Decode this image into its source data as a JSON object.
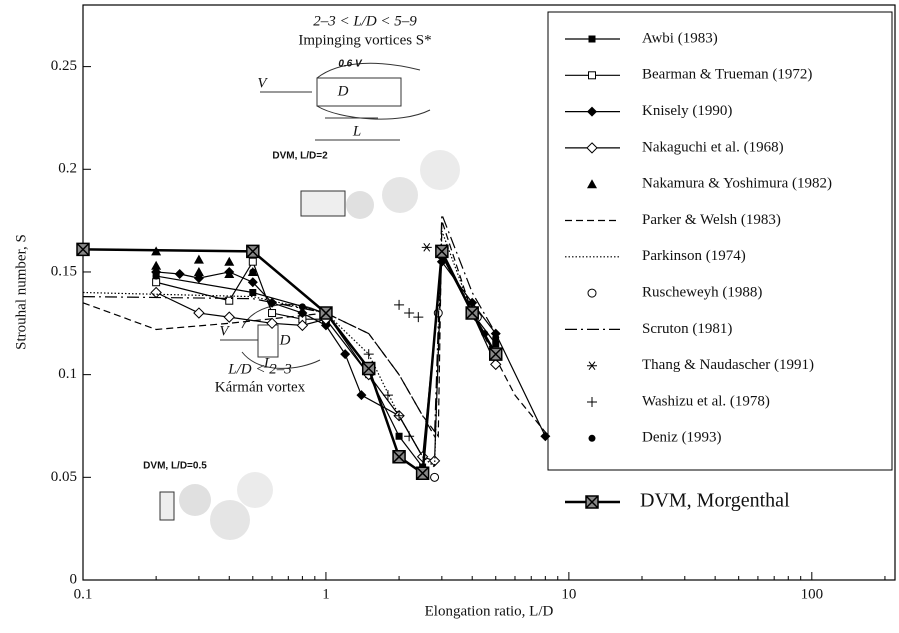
{
  "chart_data": {
    "type": "scatter",
    "xlabel": "Elongation ratio, L/D",
    "ylabel": "Strouhal number, S",
    "xlim": [
      0.1,
      220
    ],
    "xticks": [
      0.1,
      1,
      10,
      100
    ],
    "xscale": "log",
    "ylim": [
      0,
      0.28
    ],
    "yticks": [
      0,
      0.05,
      0.1,
      0.15,
      0.2,
      0.25
    ],
    "annotations": [
      "2–3 < L/D < 5–9",
      "Impinging vortices S*",
      "DVM, L/D=2",
      "L/D < 2–3",
      "Kármán vortex",
      "DVM, L/D=0.5",
      "V",
      "0.6 V",
      "D",
      "L",
      "V",
      "D",
      "L"
    ],
    "series": [
      {
        "name": "Awbi (1983)",
        "color": "#000",
        "marker": "square",
        "line": "solid",
        "x": [
          0.2,
          0.5,
          1,
          1.5,
          2,
          2.5,
          3,
          4,
          5
        ],
        "values": [
          0.148,
          0.14,
          0.13,
          0.1,
          0.07,
          0.055,
          0.158,
          0.13,
          0.115
        ]
      },
      {
        "name": "Bearman & Trueman (1972)",
        "color": "#000",
        "marker": "open-square",
        "line": "solid",
        "x": [
          0.2,
          0.4,
          0.5,
          0.6,
          0.8,
          1
        ],
        "values": [
          0.145,
          0.136,
          0.155,
          0.13,
          0.127,
          0.127
        ]
      },
      {
        "name": "Knisely (1990)",
        "color": "#000",
        "marker": "diamond",
        "line": "solid",
        "x": [
          0.2,
          0.25,
          0.3,
          0.4,
          0.5,
          0.6,
          0.8,
          1,
          1.2,
          1.4,
          2,
          2.5,
          3,
          4,
          5,
          8
        ],
        "values": [
          0.15,
          0.149,
          0.147,
          0.15,
          0.145,
          0.135,
          0.13,
          0.124,
          0.11,
          0.09,
          0.08,
          0.06,
          0.155,
          0.135,
          0.12,
          0.07
        ]
      },
      {
        "name": "Nakaguchi et al. (1968)",
        "color": "#000",
        "marker": "open-diamond",
        "line": "solid",
        "x": [
          0.2,
          0.3,
          0.4,
          0.6,
          0.8,
          1,
          1.5,
          2,
          2.5,
          2.8,
          3,
          4,
          5
        ],
        "values": [
          0.14,
          0.13,
          0.128,
          0.125,
          0.124,
          0.127,
          0.1,
          0.08,
          0.06,
          0.058,
          0.16,
          0.13,
          0.105
        ]
      },
      {
        "name": "Nakamura & Yoshimura (1982)",
        "color": "#000",
        "marker": "triangle",
        "line": "none",
        "x": [
          0.2,
          0.3,
          0.4,
          0.5,
          0.2,
          0.3,
          0.4
        ],
        "values": [
          0.16,
          0.156,
          0.155,
          0.15,
          0.153,
          0.15,
          0.149
        ]
      },
      {
        "name": "Parker & Welsh (1983)",
        "color": "#000",
        "marker": "none",
        "line": "dashed",
        "x": [
          0.1,
          0.2,
          0.4,
          1,
          1.5,
          2,
          2.5,
          2.9,
          3,
          4,
          6,
          8
        ],
        "values": [
          0.135,
          0.122,
          0.125,
          0.13,
          0.12,
          0.1,
          0.08,
          0.07,
          0.175,
          0.13,
          0.09,
          0.072
        ]
      },
      {
        "name": "Parkinson (1974)",
        "color": "#000",
        "marker": "none",
        "line": "dotted",
        "x": [
          0.1,
          0.5,
          1,
          1.5,
          2,
          2.5,
          2.8,
          3,
          4,
          5
        ],
        "values": [
          0.14,
          0.138,
          0.13,
          0.11,
          0.08,
          0.06,
          0.055,
          0.17,
          0.13,
          0.11
        ]
      },
      {
        "name": "Ruscheweyh (1988)",
        "color": "#000",
        "marker": "circle",
        "line": "none",
        "x": [
          2.8,
          2.9,
          4.2
        ],
        "values": [
          0.05,
          0.13,
          0.128
        ]
      },
      {
        "name": "Scruton (1981)",
        "color": "#000",
        "marker": "none",
        "line": "dashdot",
        "x": [
          0.1,
          0.5,
          1,
          1.5,
          2,
          2.5,
          2.8,
          3,
          4,
          5
        ],
        "values": [
          0.138,
          0.137,
          0.13,
          0.12,
          0.1,
          0.08,
          0.07,
          0.178,
          0.14,
          0.12
        ]
      },
      {
        "name": "Thang & Naudascher (1991)",
        "color": "#000",
        "marker": "asterisk",
        "line": "none",
        "x": [
          2.6
        ],
        "values": [
          0.162
        ]
      },
      {
        "name": "Washizu et al. (1978)",
        "color": "#000",
        "marker": "plus",
        "line": "none",
        "x": [
          1.5,
          1.8,
          2,
          2.2,
          2.4,
          2,
          2.2
        ],
        "values": [
          0.11,
          0.09,
          0.134,
          0.13,
          0.128,
          0.08,
          0.07
        ]
      },
      {
        "name": "Deniz (1993)",
        "color": "#000",
        "marker": "dot",
        "line": "none",
        "x": [
          0.2,
          0.5,
          0.6,
          0.8,
          1,
          4.5,
          5
        ],
        "values": [
          0.148,
          0.15,
          0.135,
          0.133,
          0.13,
          0.12,
          0.118
        ]
      },
      {
        "name": "DVM, Morgenthal",
        "color": "#000",
        "marker": "xbox",
        "line": "thick",
        "x": [
          0.1,
          0.5,
          1,
          1.5,
          2,
          2.5,
          3,
          4,
          5
        ],
        "values": [
          0.161,
          0.16,
          0.13,
          0.103,
          0.06,
          0.052,
          0.16,
          0.13,
          0.11
        ]
      }
    ]
  }
}
